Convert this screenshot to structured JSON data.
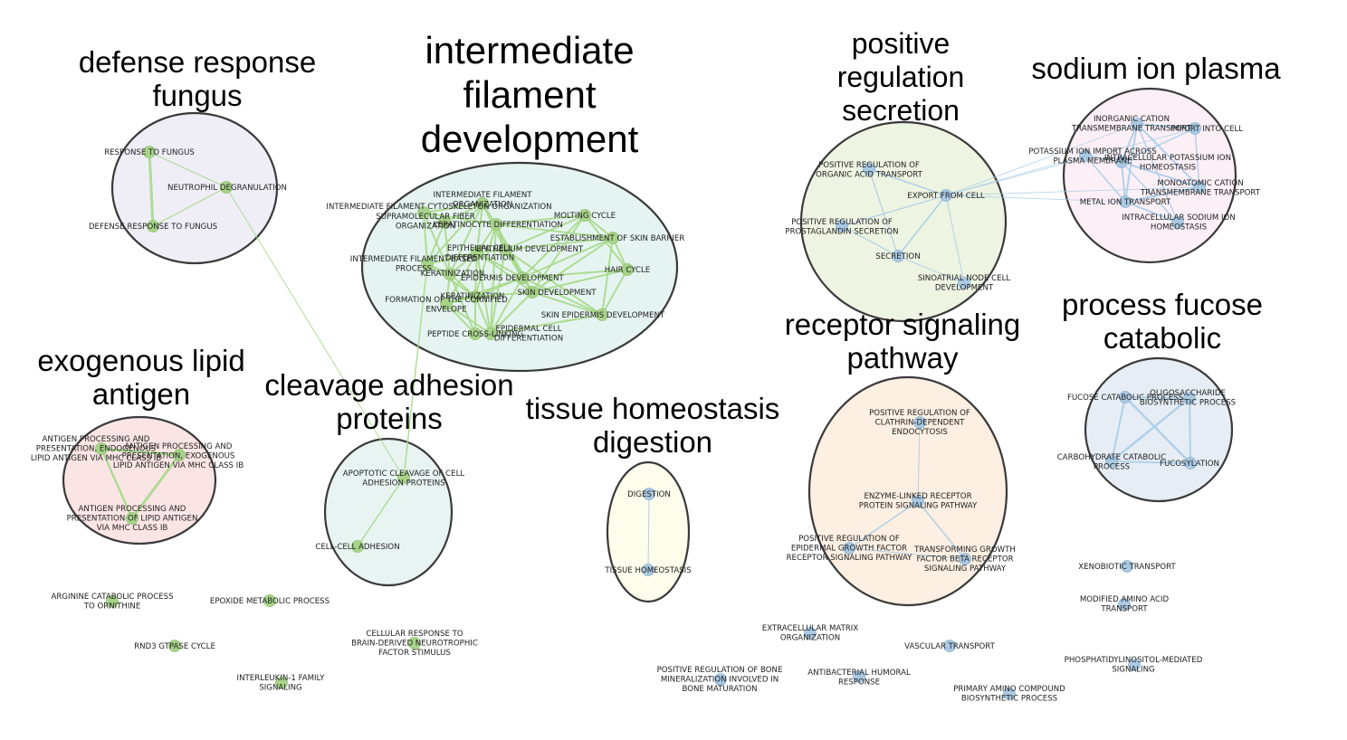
{
  "colors": {
    "green_node": "#a8d48a",
    "green_edge": "#a6d98a",
    "blue_node": "#a9c9e3",
    "blue_edge": "#a9cde8",
    "cluster_stroke": "#3a3a3a"
  },
  "clusters": [
    {
      "id": "fungus",
      "title": [
        "defense response",
        "fungus"
      ],
      "fill": "#efeef7"
    },
    {
      "id": "filament",
      "title": [
        "intermediate",
        "filament",
        "development"
      ],
      "fill": "#e6f4f1"
    },
    {
      "id": "secretion",
      "title": [
        "positive",
        "regulation",
        "secretion"
      ],
      "fill": "#edf4e1"
    },
    {
      "id": "sodium",
      "title": [
        "sodium ion plasma"
      ],
      "fill": "#fcf0f6"
    },
    {
      "id": "lipid",
      "title": [
        "exogenous lipid",
        "antigen"
      ],
      "fill": "#fbe5e4"
    },
    {
      "id": "cleavage",
      "title": [
        "cleavage adhesion",
        "proteins"
      ],
      "fill": "#e8f4f1"
    },
    {
      "id": "digestion",
      "title": [
        "tissue homeostasis",
        "digestion"
      ],
      "fill": "#fdfdec"
    },
    {
      "id": "receptor",
      "title": [
        "receptor signaling",
        "pathway"
      ],
      "fill": "#fdefe1"
    },
    {
      "id": "fucose",
      "title": [
        "process fucose",
        "catabolic"
      ],
      "fill": "#e6edf5"
    }
  ],
  "nodes": {
    "n_rtf": {
      "label": [
        "RESPONSE TO FUNGUS"
      ],
      "color": "green"
    },
    "n_ndg": {
      "label": [
        "NEUTROPHIL DEGRANULATION"
      ],
      "color": "green"
    },
    "n_drf": {
      "label": [
        "DEFENSE RESPONSE TO FUNGUS"
      ],
      "color": "green"
    },
    "n_ifo": {
      "label": [
        "INTERMEDIATE FILAMENT",
        "ORGANIZATION"
      ],
      "color": "green"
    },
    "n_ifc": {
      "label": [
        "INTERMEDIATE FILAMENT CYTOSKELETON ORGANIZATION"
      ],
      "color": "green"
    },
    "n_sso": {
      "label": [
        "SUPRAMOLECULAR FIBER",
        "ORGANIZATION"
      ],
      "color": "green"
    },
    "n_kd": {
      "label": [
        "KERATINOCYTE DIFFERENTIATION"
      ],
      "color": "green"
    },
    "n_mc": {
      "label": [
        "MOLTING CYCLE"
      ],
      "color": "green"
    },
    "n_ecd": {
      "label": [
        "EPITHELIAL CELL",
        "DIFFERENTIATION"
      ],
      "color": "green"
    },
    "n_eed": {
      "label": [
        "EPITHELIUM DEVELOPMENT"
      ],
      "color": "green"
    },
    "n_esb": {
      "label": [
        "ESTABLISHMENT OF SKIN BARRIER"
      ],
      "color": "green"
    },
    "n_ifbp": {
      "label": [
        "INTERMEDIATE FILAMENT-BASED",
        "PROCESS"
      ],
      "color": "green"
    },
    "n_hc": {
      "label": [
        "HAIR CYCLE"
      ],
      "color": "green"
    },
    "n_ker1": {
      "label": [
        "KERATINIZATION"
      ],
      "color": "green"
    },
    "n_epd": {
      "label": [
        "EPIDERMIS DEVELOPMENT"
      ],
      "color": "green"
    },
    "n_fce": {
      "label": [
        "FORMATION OF THE CORNIFIED",
        "ENVELOPE"
      ],
      "color": "green"
    },
    "n_ker2": {
      "label": [
        "KERATINIZATION"
      ],
      "color": "green"
    },
    "n_skd": {
      "label": [
        "SKIN DEVELOPMENT"
      ],
      "color": "green"
    },
    "n_sed": {
      "label": [
        "SKIN EPIDERMIS DEVELOPMENT"
      ],
      "color": "green"
    },
    "n_pcl": {
      "label": [
        "PEPTIDE CROSS-LINKING"
      ],
      "color": "green"
    },
    "n_edc": {
      "label": [
        "EPIDERMAL CELL",
        "DIFFERENTIATION"
      ],
      "color": "green"
    },
    "n_proat": {
      "label": [
        "POSITIVE REGULATION OF",
        "ORGANIC ACID TRANSPORT"
      ],
      "color": "blue"
    },
    "n_efc": {
      "label": [
        "EXPORT FROM CELL"
      ],
      "color": "blue"
    },
    "n_prps": {
      "label": [
        "POSITIVE REGULATION OF",
        "PROSTAGLANDIN SECRETION"
      ],
      "color": "blue"
    },
    "n_sec": {
      "label": [
        "SECRETION"
      ],
      "color": "blue"
    },
    "n_sncd": {
      "label": [
        "SINOATRIAL NODE CELL",
        "DEVELOPMENT"
      ],
      "color": "blue"
    },
    "n_ictt": {
      "label": [
        "INORGANIC CATION",
        "TRANSMEMBRANE TRANSPORT"
      ],
      "color": "blue"
    },
    "n_iic": {
      "label": [
        "IMPORT INTO CELL"
      ],
      "color": "blue"
    },
    "n_piip": {
      "label": [
        "POTASSIUM ION IMPORT ACROSS",
        "PLASMA MEMBRANE"
      ],
      "color": "blue"
    },
    "n_ipih": {
      "label": [
        "INTRACELLULAR POTASSIUM ION",
        "HOMEOSTASIS"
      ],
      "color": "blue"
    },
    "n_mctt": {
      "label": [
        "MONOATOMIC CATION",
        "TRANSMEMBRANE TRANSPORT"
      ],
      "color": "blue"
    },
    "n_mit": {
      "label": [
        "METAL ION TRANSPORT"
      ],
      "color": "blue"
    },
    "n_isih": {
      "label": [
        "INTRACELLULAR SODIUM ION",
        "HOMEOSTASIS"
      ],
      "color": "blue"
    },
    "n_apel": {
      "label": [
        "ANTIGEN PROCESSING AND",
        "PRESENTATION, ENDOGENOUS",
        "LIPID ANTIGEN VIA MHC CLASS IB"
      ],
      "color": "green"
    },
    "n_apxl": {
      "label": [
        "ANTIGEN PROCESSING AND",
        "PRESENTATION, EXOGENOUS",
        "LIPID ANTIGEN VIA MHC CLASS IB"
      ],
      "color": "green"
    },
    "n_apla": {
      "label": [
        "ANTIGEN PROCESSING AND",
        "PRESENTATION OF LIPID ANTIGEN",
        "VIA MHC CLASS IB"
      ],
      "color": "green"
    },
    "n_acca": {
      "label": [
        "APOPTOTIC CLEAVAGE OF CELL",
        "ADHESION  PROTEINS"
      ],
      "color": "green"
    },
    "n_cca": {
      "label": [
        "CELL-CELL ADHESION"
      ],
      "color": "green"
    },
    "n_dig": {
      "label": [
        "DIGESTION"
      ],
      "color": "blue"
    },
    "n_th": {
      "label": [
        "TISSUE HOMEOSTASIS"
      ],
      "color": "blue"
    },
    "n_prcde": {
      "label": [
        "POSITIVE REGULATION OF",
        "CLATHRIN-DEPENDENT",
        "ENDOCYTOSIS"
      ],
      "color": "blue"
    },
    "n_elrp": {
      "label": [
        "ENZYME-LINKED RECEPTOR",
        "PROTEIN SIGNALING PATHWAY"
      ],
      "color": "blue"
    },
    "n_pregf": {
      "label": [
        "POSITIVE REGULATION OF",
        "EPIDERMAL GROWTH FACTOR",
        "RECEPTOR SIGNALING PATHWAY"
      ],
      "color": "blue"
    },
    "n_tgfb": {
      "label": [
        "TRANSFORMING GROWTH",
        "FACTOR BETA RECEPTOR",
        "SIGNALING PATHWAY"
      ],
      "color": "blue"
    },
    "n_fcp": {
      "label": [
        "FUCOSE CATABOLIC PROCESS"
      ],
      "color": "blue"
    },
    "n_obp": {
      "label": [
        "OLIGOSACCHARIDE",
        "BIOSYNTHETIC PROCESS"
      ],
      "color": "blue"
    },
    "n_ccp": {
      "label": [
        "CARBOHYDRATE CATABOLIC",
        "PROCESS"
      ],
      "color": "blue"
    },
    "n_fuc": {
      "label": [
        "FUCOSYLATION"
      ],
      "color": "blue"
    },
    "n_acpo": {
      "label": [
        "ARGININE CATABOLIC PROCESS",
        "TO ORNITHINE"
      ],
      "color": "green"
    },
    "n_emp": {
      "label": [
        "EPOXIDE METABOLIC PROCESS"
      ],
      "color": "green"
    },
    "n_rnd3": {
      "label": [
        "RND3 GTPASE CYCLE"
      ],
      "color": "green"
    },
    "n_crbd": {
      "label": [
        "CELLULAR RESPONSE TO",
        "BRAIN-DERIVED NEUROTROPHIC",
        "FACTOR STIMULUS"
      ],
      "color": "green"
    },
    "n_il1": {
      "label": [
        "INTERLEUKIN-1 FAMILY",
        "SIGNALING"
      ],
      "color": "green"
    },
    "n_xt": {
      "label": [
        "XENOBIOTIC TRANSPORT"
      ],
      "color": "blue"
    },
    "n_maat": {
      "label": [
        "MODIFIED AMINO ACID",
        "TRANSPORT"
      ],
      "color": "blue"
    },
    "n_ecmo": {
      "label": [
        "EXTRACELLULAR MATRIX",
        "ORGANIZATION"
      ],
      "color": "blue"
    },
    "n_vt": {
      "label": [
        "VASCULAR TRANSPORT"
      ],
      "color": "blue"
    },
    "n_pims": {
      "label": [
        "PHOSPHATIDYLINOSITOL-MEDIATED",
        "SIGNALING"
      ],
      "color": "blue"
    },
    "n_prbm": {
      "label": [
        "POSITIVE REGULATION OF BONE",
        "MINERALIZATION INVOLVED IN",
        "BONE MATURATION"
      ],
      "color": "blue"
    },
    "n_ahr": {
      "label": [
        "ANTIBACTERIAL HUMORAL",
        "RESPONSE"
      ],
      "color": "blue"
    },
    "n_pacb": {
      "label": [
        "PRIMARY AMINO COMPOUND",
        "BIOSYNTHETIC PROCESS"
      ],
      "color": "blue"
    }
  }
}
